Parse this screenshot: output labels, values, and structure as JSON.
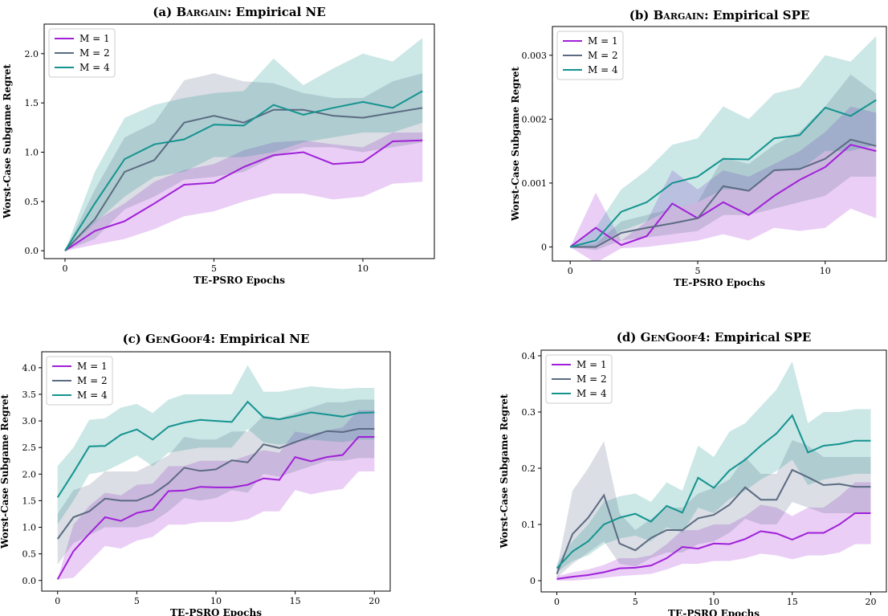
{
  "colors": {
    "M1": "#a020d8",
    "M2": "#5b6b82",
    "M4": "#14938f"
  },
  "chart_data": [
    {
      "id": "a",
      "type": "line",
      "title_prefix": "(a) ",
      "title_sc": "Bargain",
      "title_suffix": ": Empirical NE",
      "xlabel": "TE-PSRO Epochs",
      "ylabel": "Worst-Case Subgame Regret",
      "xlim": [
        -0.7,
        12.4
      ],
      "ylim": [
        -0.08,
        2.3
      ],
      "xticks": [
        0,
        5,
        10
      ],
      "yticks": [
        0.0,
        0.5,
        1.0,
        1.5,
        2.0
      ],
      "ytick_labels": [
        "0.0",
        "0.5",
        "1.0",
        "1.5",
        "2.0"
      ],
      "legend": "top-left",
      "x": [
        0,
        1,
        2,
        3,
        4,
        5,
        6,
        7,
        8,
        9,
        10,
        11,
        12
      ],
      "series": [
        {
          "name": "M = 1",
          "color_key": "M1",
          "values": [
            0.0,
            0.2,
            0.3,
            0.48,
            0.67,
            0.69,
            0.85,
            0.97,
            1.0,
            0.88,
            0.9,
            1.11,
            1.12
          ],
          "lower": [
            0.0,
            0.06,
            0.12,
            0.22,
            0.35,
            0.4,
            0.5,
            0.58,
            0.58,
            0.52,
            0.55,
            0.68,
            0.7
          ],
          "upper": [
            0.0,
            0.3,
            0.48,
            0.7,
            0.82,
            0.88,
            1.02,
            1.1,
            1.12,
            1.08,
            1.05,
            1.2,
            1.2
          ]
        },
        {
          "name": "M = 2",
          "color_key": "M2",
          "values": [
            0.0,
            0.32,
            0.8,
            0.92,
            1.3,
            1.37,
            1.3,
            1.43,
            1.43,
            1.37,
            1.35,
            1.4,
            1.45
          ],
          "lower": [
            0.0,
            0.12,
            0.42,
            0.55,
            0.72,
            0.75,
            0.8,
            0.95,
            1.05,
            1.05,
            1.0,
            1.05,
            1.1
          ],
          "upper": [
            0.0,
            0.62,
            1.15,
            1.3,
            1.73,
            1.8,
            1.72,
            1.7,
            1.6,
            1.55,
            1.55,
            1.72,
            1.8
          ]
        },
        {
          "name": "M = 4",
          "color_key": "M4",
          "values": [
            0.0,
            0.48,
            0.93,
            1.08,
            1.13,
            1.28,
            1.27,
            1.48,
            1.38,
            1.45,
            1.51,
            1.45,
            1.62
          ],
          "lower": [
            0.0,
            0.28,
            0.55,
            0.75,
            0.8,
            0.95,
            0.95,
            1.0,
            1.1,
            1.15,
            1.2,
            1.2,
            1.3
          ],
          "upper": [
            0.0,
            0.8,
            1.35,
            1.48,
            1.55,
            1.6,
            1.62,
            1.95,
            1.68,
            1.85,
            2.0,
            1.92,
            2.16
          ]
        }
      ]
    },
    {
      "id": "b",
      "type": "line",
      "title_prefix": "(b) ",
      "title_sc": "Bargain",
      "title_suffix": ": Empirical SPE",
      "xlabel": "TE-PSRO Epochs",
      "ylabel": "Worst-Case Subgame Regret",
      "xlim": [
        -0.7,
        12.4
      ],
      "ylim": [
        -0.00022,
        0.00345
      ],
      "xticks": [
        0,
        5,
        10
      ],
      "yticks": [
        0,
        0.001,
        0.002,
        0.003
      ],
      "ytick_labels": [
        "0",
        "0.001",
        "0.002",
        "0.003"
      ],
      "legend": "top-left",
      "x": [
        0,
        1,
        2,
        3,
        4,
        5,
        6,
        7,
        8,
        9,
        10,
        11,
        12
      ],
      "series": [
        {
          "name": "M = 1",
          "color_key": "M1",
          "values": [
            0,
            0.0003,
            3e-05,
            0.00017,
            0.00068,
            0.00045,
            0.0007,
            0.0005,
            0.0008,
            0.00105,
            0.00125,
            0.0016,
            0.0015
          ],
          "lower": [
            0,
            -0.00025,
            -2e-05,
            0,
            5e-05,
            0.0001,
            0.0002,
            0.0001,
            0.0003,
            0.00025,
            0.0003,
            0.0006,
            0.00045
          ],
          "upper": [
            0,
            0.00085,
            0.0001,
            0.0004,
            0.0012,
            0.0009,
            0.0012,
            0.0011,
            0.0013,
            0.0015,
            0.0018,
            0.0022,
            0.0021
          ]
        },
        {
          "name": "M = 2",
          "color_key": "M2",
          "values": [
            0,
            0,
            0.00022,
            0.0003,
            0.00037,
            0.00045,
            0.00095,
            0.00088,
            0.0012,
            0.00122,
            0.00138,
            0.00168,
            0.00158
          ],
          "lower": [
            0,
            -5e-05,
            0.0001,
            0.00015,
            0.0002,
            0.00025,
            0.0005,
            0.0005,
            0.0006,
            0.0007,
            0.0008,
            0.0011,
            0.0011
          ],
          "upper": [
            0,
            5e-05,
            0.0004,
            0.0005,
            0.0006,
            0.0007,
            0.0014,
            0.0013,
            0.0016,
            0.0018,
            0.0022,
            0.0027,
            0.0024
          ]
        },
        {
          "name": "M = 4",
          "color_key": "M4",
          "values": [
            0,
            0.0001,
            0.00055,
            0.0007,
            0.001,
            0.0011,
            0.00138,
            0.00137,
            0.0017,
            0.00175,
            0.00218,
            0.00205,
            0.0023
          ],
          "lower": [
            0,
            2e-05,
            0.00025,
            0.0004,
            0.0006,
            0.0007,
            0.0009,
            0.0009,
            0.0012,
            0.0012,
            0.0015,
            0.0015,
            0.0016
          ],
          "upper": [
            0,
            0.0003,
            0.0009,
            0.0012,
            0.0016,
            0.0017,
            0.0022,
            0.002,
            0.0024,
            0.0025,
            0.003,
            0.0029,
            0.0033
          ]
        }
      ]
    },
    {
      "id": "c",
      "type": "line",
      "title_prefix": "(c) ",
      "title_sc": "GenGoof4",
      "title_suffix": ": Empirical NE",
      "xlabel": "TE-PSRO Epochs",
      "ylabel": "Worst-Case Subgame Regret",
      "xlim": [
        -1.0,
        21.0
      ],
      "ylim": [
        -0.2,
        4.3
      ],
      "xticks": [
        0,
        5,
        10,
        15,
        20
      ],
      "yticks": [
        0.0,
        0.5,
        1.0,
        1.5,
        2.0,
        2.5,
        3.0,
        3.5,
        4.0
      ],
      "ytick_labels": [
        "0.0",
        "0.5",
        "1.0",
        "1.5",
        "2.0",
        "2.5",
        "3.0",
        "3.5",
        "4.0"
      ],
      "legend": "top-left",
      "x": [
        0,
        1,
        2,
        3,
        4,
        5,
        6,
        7,
        8,
        9,
        10,
        11,
        12,
        13,
        14,
        15,
        16,
        17,
        18,
        19,
        20
      ],
      "series": [
        {
          "name": "M = 1",
          "color_key": "M1",
          "values": [
            0.02,
            0.55,
            0.88,
            1.19,
            1.12,
            1.27,
            1.33,
            1.68,
            1.69,
            1.76,
            1.75,
            1.75,
            1.8,
            1.92,
            1.89,
            2.32,
            2.24,
            2.32,
            2.36,
            2.7,
            2.7
          ],
          "lower": [
            0.02,
            0.05,
            0.35,
            0.65,
            0.6,
            0.75,
            0.82,
            1.05,
            1.05,
            1.1,
            1.1,
            1.1,
            1.15,
            1.3,
            1.3,
            1.7,
            1.62,
            1.68,
            1.72,
            2.05,
            2.05
          ],
          "upper": [
            0.02,
            1.05,
            1.4,
            1.65,
            1.6,
            1.8,
            1.82,
            2.15,
            2.15,
            2.25,
            2.25,
            2.25,
            2.35,
            2.45,
            2.4,
            2.8,
            2.75,
            2.82,
            2.88,
            3.2,
            3.2
          ]
        },
        {
          "name": "M = 2",
          "color_key": "M2",
          "values": [
            0.78,
            1.19,
            1.3,
            1.54,
            1.5,
            1.5,
            1.62,
            1.83,
            2.12,
            2.06,
            2.09,
            2.26,
            2.22,
            2.56,
            2.49,
            2.6,
            2.71,
            2.81,
            2.79,
            2.85,
            2.85
          ],
          "lower": [
            0.3,
            0.7,
            0.85,
            1.0,
            1.0,
            1.0,
            1.1,
            1.3,
            1.55,
            1.5,
            1.55,
            1.7,
            1.65,
            2.0,
            1.95,
            2.05,
            2.15,
            2.25,
            2.25,
            2.3,
            2.3
          ],
          "upper": [
            1.25,
            1.7,
            1.8,
            2.05,
            2.05,
            2.05,
            2.2,
            2.35,
            2.7,
            2.65,
            2.65,
            2.8,
            2.8,
            3.1,
            3.05,
            3.15,
            3.25,
            3.35,
            3.35,
            3.4,
            3.4
          ]
        },
        {
          "name": "M = 4",
          "color_key": "M4",
          "values": [
            1.56,
            2.03,
            2.52,
            2.53,
            2.74,
            2.84,
            2.65,
            2.89,
            2.97,
            3.02,
            3.0,
            2.98,
            3.36,
            3.07,
            3.03,
            3.09,
            3.16,
            3.12,
            3.08,
            3.15,
            3.16
          ],
          "lower": [
            1.05,
            1.5,
            2.0,
            2.05,
            2.2,
            2.35,
            2.15,
            2.4,
            2.45,
            2.5,
            2.5,
            2.5,
            2.85,
            2.6,
            2.55,
            2.6,
            2.65,
            2.62,
            2.6,
            2.65,
            2.65
          ],
          "upper": [
            2.15,
            2.5,
            3.02,
            3.05,
            3.25,
            3.32,
            3.15,
            3.4,
            3.5,
            3.5,
            3.5,
            3.5,
            4.05,
            3.55,
            3.55,
            3.6,
            3.65,
            3.62,
            3.6,
            3.62,
            3.62
          ]
        }
      ]
    },
    {
      "id": "d",
      "type": "line",
      "title_prefix": "(d) ",
      "title_sc": "GenGoof4",
      "title_suffix": ": Empirical SPE",
      "xlabel": "TE-PSRO Epochs",
      "ylabel": "Worst-Case Subgame Regret",
      "xlim": [
        -1.0,
        21.0
      ],
      "ylim": [
        -0.02,
        0.41
      ],
      "xticks": [
        0,
        5,
        10,
        15,
        20
      ],
      "yticks": [
        0,
        0.1,
        0.2,
        0.3,
        0.4
      ],
      "ytick_labels": [
        "0",
        "0.1",
        "0.2",
        "0.3",
        "0.4"
      ],
      "legend": "top-left",
      "x": [
        0,
        1,
        2,
        3,
        4,
        5,
        6,
        7,
        8,
        9,
        10,
        11,
        12,
        13,
        14,
        15,
        16,
        17,
        18,
        19,
        20
      ],
      "series": [
        {
          "name": "M = 1",
          "color_key": "M1",
          "values": [
            0.003,
            0.007,
            0.01,
            0.015,
            0.022,
            0.023,
            0.027,
            0.04,
            0.06,
            0.057,
            0.066,
            0.065,
            0.074,
            0.088,
            0.084,
            0.073,
            0.085,
            0.085,
            0.1,
            0.12,
            0.12
          ],
          "lower": [
            0.0,
            0.0,
            0.002,
            0.005,
            0.008,
            0.01,
            0.012,
            0.02,
            0.03,
            0.03,
            0.035,
            0.035,
            0.04,
            0.048,
            0.045,
            0.038,
            0.045,
            0.045,
            0.05,
            0.065,
            0.065
          ],
          "upper": [
            0.008,
            0.015,
            0.02,
            0.028,
            0.04,
            0.04,
            0.045,
            0.065,
            0.09,
            0.09,
            0.1,
            0.1,
            0.115,
            0.135,
            0.13,
            0.115,
            0.13,
            0.13,
            0.15,
            0.175,
            0.175
          ]
        },
        {
          "name": "M = 2",
          "color_key": "M2",
          "values": [
            0.012,
            0.083,
            0.112,
            0.152,
            0.066,
            0.054,
            0.076,
            0.09,
            0.09,
            0.111,
            0.117,
            0.135,
            0.166,
            0.144,
            0.144,
            0.197,
            0.184,
            0.17,
            0.172,
            0.167,
            0.167
          ],
          "lower": [
            0.005,
            0.03,
            0.05,
            0.07,
            0.03,
            0.025,
            0.04,
            0.05,
            0.05,
            0.065,
            0.07,
            0.085,
            0.11,
            0.1,
            0.1,
            0.14,
            0.13,
            0.12,
            0.12,
            0.12,
            0.12
          ],
          "upper": [
            0.02,
            0.16,
            0.2,
            0.248,
            0.12,
            0.09,
            0.11,
            0.13,
            0.13,
            0.155,
            0.165,
            0.18,
            0.22,
            0.19,
            0.19,
            0.25,
            0.24,
            0.22,
            0.22,
            0.22,
            0.22
          ]
        },
        {
          "name": "M = 4",
          "color_key": "M4",
          "values": [
            0.022,
            0.052,
            0.07,
            0.1,
            0.112,
            0.119,
            0.105,
            0.133,
            0.121,
            0.183,
            0.165,
            0.196,
            0.215,
            0.24,
            0.262,
            0.294,
            0.228,
            0.24,
            0.243,
            0.249,
            0.249
          ],
          "lower": [
            0.015,
            0.035,
            0.045,
            0.065,
            0.075,
            0.08,
            0.07,
            0.095,
            0.085,
            0.13,
            0.12,
            0.145,
            0.16,
            0.18,
            0.195,
            0.215,
            0.17,
            0.18,
            0.185,
            0.19,
            0.19
          ],
          "upper": [
            0.03,
            0.07,
            0.1,
            0.14,
            0.15,
            0.155,
            0.14,
            0.175,
            0.16,
            0.24,
            0.22,
            0.265,
            0.28,
            0.31,
            0.34,
            0.39,
            0.28,
            0.3,
            0.3,
            0.305,
            0.305
          ]
        }
      ]
    }
  ]
}
